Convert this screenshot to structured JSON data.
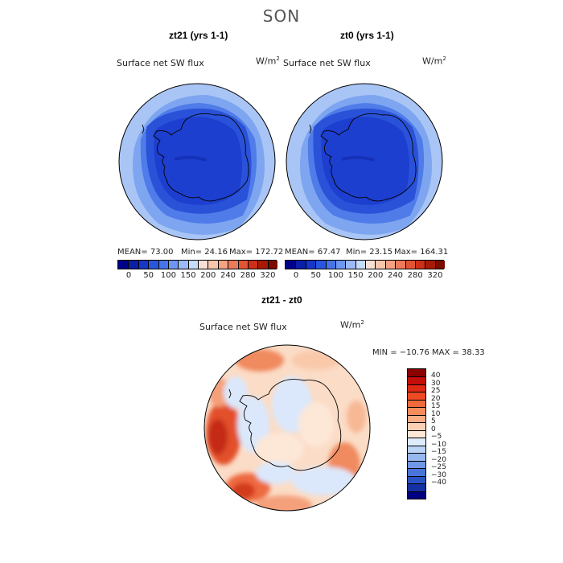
{
  "season": "SON",
  "top_panels": [
    {
      "title": "zt21 (yrs 1-1)",
      "variable": "Surface net SW flux",
      "units": "W/m",
      "units_exp": "2",
      "mean": "MEAN=   73.00",
      "min": "Min=   24.16",
      "max": "Max=  172.72"
    },
    {
      "title": "zt0 (yrs 1-1)",
      "variable": "Surface net SW flux",
      "units": "W/m",
      "units_exp": "2",
      "mean": "MEAN=   67.47",
      "min": "Min=   23.15",
      "max": "Max=  164.31"
    }
  ],
  "top_colorbar": {
    "ticks": [
      "0",
      "50",
      "100",
      "150",
      "200",
      "240",
      "280",
      "320"
    ],
    "colors": [
      "#00008b",
      "#0a1ea8",
      "#1637c8",
      "#2a56de",
      "#4675ea",
      "#6e97f2",
      "#9bbaf7",
      "#c6dcfb",
      "#f7e1d4",
      "#f6c6ad",
      "#f3a384",
      "#ec7b5a",
      "#e25534",
      "#cc3016",
      "#a81a08",
      "#7a0d00"
    ]
  },
  "diff_panel": {
    "title": "zt21 - zt0",
    "variable": "Surface net SW flux",
    "units": "W/m",
    "units_exp": "2",
    "min_max": "MIN = −10.76 MAX =  38.33"
  },
  "diff_colorbar": {
    "ticks": [
      "40",
      "30",
      "25",
      "20",
      "15",
      "10",
      "5",
      "0",
      "−5",
      "−10",
      "−15",
      "−20",
      "−25",
      "−30",
      "−40"
    ],
    "colors": [
      "#8b0000",
      "#c40e0a",
      "#e02a15",
      "#ee4a24",
      "#f26a3c",
      "#f68b5c",
      "#f9ad85",
      "#fbcfb3",
      "#fde7d7",
      "#deecfb",
      "#bcd4f6",
      "#96b7ef",
      "#6f97e6",
      "#4a75d8",
      "#2a52c2",
      "#1430a2",
      "#000080"
    ]
  },
  "chart_data": [
    {
      "type": "heatmap",
      "title": "zt21 (yrs 1-1)",
      "subtitle": "Surface net SW flux",
      "units": "W/m2",
      "projection": "south polar stereographic",
      "stats": {
        "mean": 73.0,
        "min": 24.16,
        "max": 172.72
      },
      "colorbar_levels": [
        0,
        50,
        100,
        150,
        200,
        240,
        280,
        320
      ]
    },
    {
      "type": "heatmap",
      "title": "zt0 (yrs 1-1)",
      "subtitle": "Surface net SW flux",
      "units": "W/m2",
      "projection": "south polar stereographic",
      "stats": {
        "mean": 67.47,
        "min": 23.15,
        "max": 164.31
      },
      "colorbar_levels": [
        0,
        50,
        100,
        150,
        200,
        240,
        280,
        320
      ]
    },
    {
      "type": "heatmap",
      "title": "zt21 - zt0",
      "subtitle": "Surface net SW flux",
      "units": "W/m2",
      "projection": "south polar stereographic",
      "stats": {
        "min": -10.76,
        "max": 38.33
      },
      "colorbar_levels": [
        40,
        30,
        25,
        20,
        15,
        10,
        5,
        0,
        -5,
        -10,
        -15,
        -20,
        -25,
        -30,
        -40
      ]
    }
  ]
}
